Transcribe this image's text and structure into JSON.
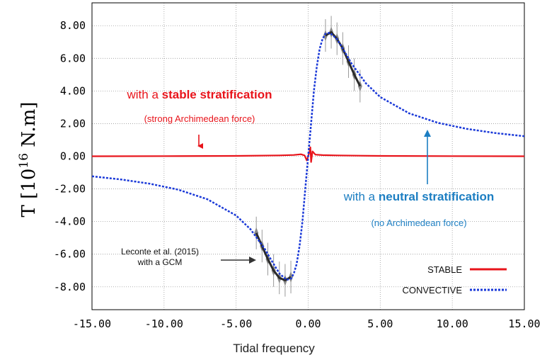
{
  "chart_data": {
    "type": "line",
    "xlabel": "Tidal frequency",
    "ylabel": {
      "main": "T [10",
      "exp": "16",
      "unit": " N.m]"
    },
    "xlim": [
      -15,
      15
    ],
    "ylim": [
      -9.4,
      9.4
    ],
    "grid": true,
    "x_ticks": [
      "-15.00",
      "-10.00",
      "-5.00",
      "0.00",
      "5.00",
      "10.00",
      "15.00"
    ],
    "y_ticks": [
      "8.00",
      "6.00",
      "4.00",
      "2.00",
      "0.00",
      "-2.00",
      "-4.00",
      "-6.00",
      "-8.00"
    ],
    "x_tick_values": [
      -15,
      -10,
      -5,
      0,
      5,
      10,
      15
    ],
    "y_tick_values": [
      8,
      6,
      4,
      2,
      0,
      -2,
      -4,
      -6,
      -8
    ],
    "legend_position": "bottom-right",
    "series": [
      {
        "name": "STABLE",
        "color": "#e8141b",
        "style": "solid",
        "x": [
          -15,
          -10,
          -5,
          -2,
          -1,
          -0.5,
          -0.25,
          -0.1,
          0,
          0.1,
          0.15,
          0.2,
          0.3,
          0.5,
          1,
          2,
          5,
          10,
          15
        ],
        "y": [
          0.0,
          0.01,
          0.02,
          0.05,
          0.08,
          0.12,
          0.05,
          -0.25,
          0,
          0.3,
          0.55,
          -0.35,
          0.3,
          0.1,
          0.07,
          0.05,
          0.02,
          0.01,
          0.0
        ]
      },
      {
        "name": "CONVECTIVE",
        "color": "#1a39d8",
        "style": "dotted",
        "x": [
          -15,
          -13,
          -11,
          -9,
          -7,
          -5,
          -4,
          -3,
          -2.5,
          -2,
          -1.5,
          -1.2,
          -1,
          -0.8,
          -0.6,
          -0.4,
          -0.2,
          0,
          0.2,
          0.4,
          0.6,
          0.8,
          1,
          1.2,
          1.5,
          2,
          2.5,
          3,
          4,
          5,
          7,
          9,
          11,
          13,
          15
        ],
        "y": [
          -1.23,
          -1.42,
          -1.68,
          -2.05,
          -2.63,
          -3.63,
          -4.47,
          -5.69,
          -6.45,
          -7.18,
          -7.57,
          -7.5,
          -7.2,
          -6.6,
          -5.5,
          -4.0,
          -2.0,
          0,
          2.0,
          4.0,
          5.5,
          6.6,
          7.2,
          7.5,
          7.57,
          7.18,
          6.45,
          5.69,
          4.47,
          3.63,
          2.63,
          2.05,
          1.68,
          1.42,
          1.23
        ]
      }
    ],
    "gcm_data": {
      "x": [
        -3.6,
        -3.2,
        -2.8,
        -2.4,
        -2.0,
        -1.6,
        -1.2,
        1.2,
        1.6,
        2.0,
        2.4,
        2.8,
        3.2,
        3.6
      ],
      "y": [
        -4.7,
        -5.5,
        -6.3,
        -7.0,
        -7.45,
        -7.6,
        -7.4,
        7.4,
        7.6,
        7.2,
        6.6,
        5.8,
        5.0,
        4.3
      ]
    },
    "annotations": {
      "stable": {
        "prefix": "with a ",
        "bold": "stable stratification",
        "sub": "(strong Archimedean force)",
        "color": "#e8141b"
      },
      "neutral": {
        "prefix": "with a ",
        "bold": "neutral stratification",
        "sub": "(no Archimedean force)",
        "color": "#1c7ec2"
      },
      "gcm": {
        "line1": "Leconte et al. (2015)",
        "line2": "with a GCM"
      }
    }
  }
}
